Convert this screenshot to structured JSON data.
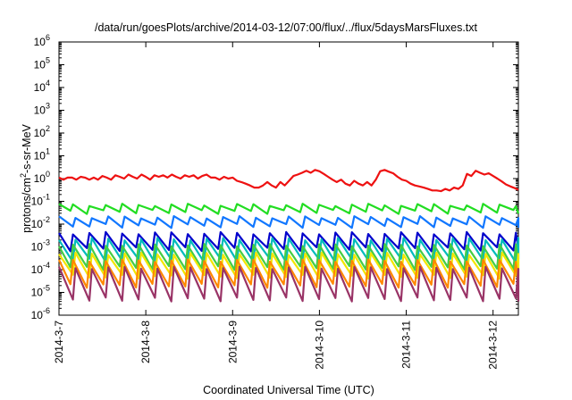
{
  "chart_data": {
    "type": "line",
    "title": "/data/run/goesPlots/archive/2014-03-12/07:00/flux/../flux/5daysMarsFluxes.txt",
    "xlabel": "Coordinated Universal Time (UTC)",
    "ylabel_parts": {
      "pre": "protons/cm",
      "sup": "2",
      "post": "-s-sr-MeV"
    },
    "yscale": "log",
    "ylim": [
      1e-06,
      1000000.0
    ],
    "y_ticks": [
      {
        "value": 1e-06,
        "base": "10",
        "exp": "-6"
      },
      {
        "value": 1e-05,
        "base": "10",
        "exp": "-5"
      },
      {
        "value": 0.0001,
        "base": "10",
        "exp": "-4"
      },
      {
        "value": 0.001,
        "base": "10",
        "exp": "-3"
      },
      {
        "value": 0.01,
        "base": "10",
        "exp": "-2"
      },
      {
        "value": 0.1,
        "base": "10",
        "exp": "-1"
      },
      {
        "value": 1.0,
        "base": "10",
        "exp": "0"
      },
      {
        "value": 10.0,
        "base": "10",
        "exp": "1"
      },
      {
        "value": 100.0,
        "base": "10",
        "exp": "2"
      },
      {
        "value": 1000.0,
        "base": "10",
        "exp": "3"
      },
      {
        "value": 10000.0,
        "base": "10",
        "exp": "4"
      },
      {
        "value": 100000.0,
        "base": "10",
        "exp": "5"
      },
      {
        "value": 1000000.0,
        "base": "10",
        "exp": "6"
      }
    ],
    "xlim": [
      "2014-03-07T00:00",
      "2014-03-12T07:00"
    ],
    "x_ticks": [
      {
        "value": "2014-03-07T00:00",
        "label": "2014-3-7"
      },
      {
        "value": "2014-03-08T00:00",
        "label": "2014-3-8"
      },
      {
        "value": "2014-03-09T00:00",
        "label": "2014-3-9"
      },
      {
        "value": "2014-03-10T00:00",
        "label": "2014-3-10"
      },
      {
        "value": "2014-03-11T00:00",
        "label": "2014-3-11"
      },
      {
        "value": "2014-03-12T00:00",
        "label": "2014-3-12"
      }
    ],
    "grid": false,
    "legend": "none",
    "series": [
      {
        "color": "#ee1111",
        "points": [
          [
            "2014-03-07T00:00",
            1.1
          ],
          [
            "2014-03-07T01:12",
            0.9
          ],
          [
            "2014-03-07T02:24",
            1.1
          ],
          [
            "2014-03-07T03:36",
            1.1
          ],
          [
            "2014-03-07T04:48",
            0.9
          ],
          [
            "2014-03-07T06:00",
            1.2
          ],
          [
            "2014-03-07T07:12",
            1.1
          ],
          [
            "2014-03-07T08:24",
            0.9
          ],
          [
            "2014-03-07T09:36",
            1.1
          ],
          [
            "2014-03-07T10:48",
            0.9
          ],
          [
            "2014-03-07T12:00",
            1.3
          ],
          [
            "2014-03-07T13:12",
            1.1
          ],
          [
            "2014-03-07T14:24",
            0.9
          ],
          [
            "2014-03-07T15:36",
            1.4
          ],
          [
            "2014-03-07T16:48",
            1.2
          ],
          [
            "2014-03-07T18:00",
            1.0
          ],
          [
            "2014-03-07T19:12",
            1.5
          ],
          [
            "2014-03-07T20:24",
            1.2
          ],
          [
            "2014-03-07T21:36",
            1.0
          ],
          [
            "2014-03-07T22:48",
            1.5
          ],
          [
            "2014-03-08T00:00",
            1.2
          ],
          [
            "2014-03-08T01:12",
            0.9
          ],
          [
            "2014-03-08T02:24",
            1.4
          ],
          [
            "2014-03-08T03:36",
            1.2
          ],
          [
            "2014-03-08T04:48",
            1.4
          ],
          [
            "2014-03-08T06:00",
            1.1
          ],
          [
            "2014-03-08T07:12",
            1.5
          ],
          [
            "2014-03-08T08:24",
            1.2
          ],
          [
            "2014-03-08T09:36",
            1.0
          ],
          [
            "2014-03-08T10:48",
            1.4
          ],
          [
            "2014-03-08T12:00",
            1.2
          ],
          [
            "2014-03-08T13:12",
            1.4
          ],
          [
            "2014-03-08T14:24",
            1.0
          ],
          [
            "2014-03-08T15:36",
            1.3
          ],
          [
            "2014-03-08T16:48",
            1.5
          ],
          [
            "2014-03-08T18:00",
            1.1
          ],
          [
            "2014-03-08T19:12",
            1.1
          ],
          [
            "2014-03-08T20:24",
            0.9
          ],
          [
            "2014-03-08T21:36",
            1.2
          ],
          [
            "2014-03-08T22:48",
            1.0
          ],
          [
            "2014-03-09T00:00",
            1.1
          ],
          [
            "2014-03-09T01:12",
            0.8
          ],
          [
            "2014-03-09T02:24",
            0.7
          ],
          [
            "2014-03-09T03:36",
            0.6
          ],
          [
            "2014-03-09T04:48",
            0.5
          ],
          [
            "2014-03-09T06:00",
            0.4
          ],
          [
            "2014-03-09T07:12",
            0.4
          ],
          [
            "2014-03-09T08:24",
            0.5
          ],
          [
            "2014-03-09T09:36",
            0.7
          ],
          [
            "2014-03-09T10:48",
            0.5
          ],
          [
            "2014-03-09T12:00",
            0.4
          ],
          [
            "2014-03-09T13:12",
            0.7
          ],
          [
            "2014-03-09T14:24",
            0.5
          ],
          [
            "2014-03-09T15:36",
            0.8
          ],
          [
            "2014-03-09T16:48",
            1.3
          ],
          [
            "2014-03-09T18:00",
            1.5
          ],
          [
            "2014-03-09T19:12",
            1.8
          ],
          [
            "2014-03-09T20:24",
            2.2
          ],
          [
            "2014-03-09T21:36",
            1.8
          ],
          [
            "2014-03-09T22:48",
            2.4
          ],
          [
            "2014-03-10T00:00",
            2.1
          ],
          [
            "2014-03-10T01:12",
            1.6
          ],
          [
            "2014-03-10T02:24",
            1.2
          ],
          [
            "2014-03-10T03:36",
            0.9
          ],
          [
            "2014-03-10T04:48",
            0.7
          ],
          [
            "2014-03-10T06:00",
            0.9
          ],
          [
            "2014-03-10T07:12",
            0.6
          ],
          [
            "2014-03-10T08:24",
            0.5
          ],
          [
            "2014-03-10T09:36",
            0.8
          ],
          [
            "2014-03-10T10:48",
            0.6
          ],
          [
            "2014-03-10T12:00",
            0.5
          ],
          [
            "2014-03-10T13:12",
            0.7
          ],
          [
            "2014-03-10T14:24",
            0.5
          ],
          [
            "2014-03-10T15:36",
            0.9
          ],
          [
            "2014-03-10T16:48",
            2.1
          ],
          [
            "2014-03-10T18:00",
            2.4
          ],
          [
            "2014-03-10T19:12",
            2.0
          ],
          [
            "2014-03-10T20:24",
            1.7
          ],
          [
            "2014-03-10T21:36",
            1.2
          ],
          [
            "2014-03-10T22:48",
            0.9
          ],
          [
            "2014-03-11T00:00",
            0.8
          ],
          [
            "2014-03-11T01:12",
            0.6
          ],
          [
            "2014-03-11T02:24",
            0.5
          ],
          [
            "2014-03-11T03:36",
            0.45
          ],
          [
            "2014-03-11T04:48",
            0.4
          ],
          [
            "2014-03-11T06:00",
            0.35
          ],
          [
            "2014-03-11T07:12",
            0.3
          ],
          [
            "2014-03-11T08:24",
            0.3
          ],
          [
            "2014-03-11T09:36",
            0.28
          ],
          [
            "2014-03-11T10:48",
            0.35
          ],
          [
            "2014-03-11T12:00",
            0.3
          ],
          [
            "2014-03-11T13:12",
            0.4
          ],
          [
            "2014-03-11T14:24",
            0.35
          ],
          [
            "2014-03-11T15:36",
            0.5
          ],
          [
            "2014-03-11T16:48",
            1.6
          ],
          [
            "2014-03-11T18:00",
            1.3
          ],
          [
            "2014-03-11T19:12",
            2.2
          ],
          [
            "2014-03-11T20:24",
            1.8
          ],
          [
            "2014-03-11T21:36",
            1.5
          ],
          [
            "2014-03-11T22:48",
            1.7
          ],
          [
            "2014-03-12T00:00",
            1.3
          ],
          [
            "2014-03-12T01:12",
            1.0
          ],
          [
            "2014-03-12T02:24",
            0.75
          ],
          [
            "2014-03-12T03:36",
            0.55
          ],
          [
            "2014-03-12T04:48",
            0.45
          ],
          [
            "2014-03-12T06:00",
            0.38
          ],
          [
            "2014-03-12T07:00",
            0.32
          ]
        ]
      },
      {
        "color": "#22dd22",
        "peak_value": 0.07,
        "trough_value": 0.035,
        "cycles": 28
      },
      {
        "color": "#1177ff",
        "peak_value": 0.02,
        "trough_value": 0.0085,
        "cycles": 28
      },
      {
        "color": "#0000cc",
        "peak_value": 0.004,
        "trough_value": 0.0008,
        "cycles": 28
      },
      {
        "color": "#00bbbb",
        "peak_value": 0.0022,
        "trough_value": 0.00025,
        "cycles": 28
      },
      {
        "color": "#44cc44",
        "peak_value": 0.0012,
        "trough_value": 0.00012,
        "cycles": 28
      },
      {
        "color": "#f2e600",
        "peak_value": 0.0005,
        "trough_value": 5e-05,
        "cycles": 28
      },
      {
        "color": "#ff8800",
        "peak_value": 0.00025,
        "trough_value": 2e-05,
        "cycles": 28
      },
      {
        "color": "#993366",
        "peak_value": 0.00012,
        "trough_value": 5e-06,
        "cycles": 28
      }
    ]
  }
}
